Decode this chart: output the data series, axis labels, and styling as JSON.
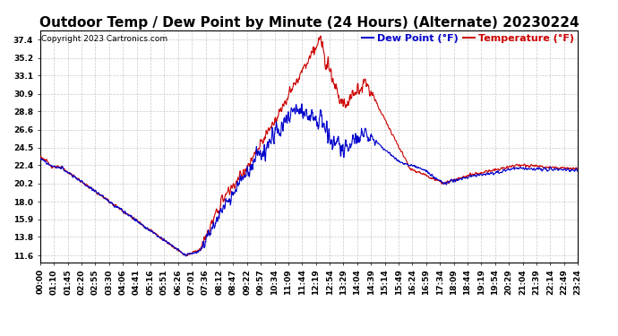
{
  "title": "Outdoor Temp / Dew Point by Minute (24 Hours) (Alternate) 20230224",
  "copyright": "Copyright 2023 Cartronics.com",
  "legend_dew": "Dew Point (°F)",
  "legend_temp": "Temperature (°F)",
  "yticks": [
    11.6,
    13.8,
    15.9,
    18.0,
    20.2,
    22.4,
    24.5,
    26.6,
    28.8,
    30.9,
    33.1,
    35.2,
    37.4
  ],
  "ylim": [
    10.8,
    38.5
  ],
  "xtick_labels": [
    "00:00",
    "01:10",
    "01:45",
    "02:20",
    "02:55",
    "03:30",
    "04:06",
    "04:41",
    "05:16",
    "05:51",
    "06:26",
    "07:01",
    "07:36",
    "08:12",
    "08:47",
    "09:22",
    "09:57",
    "10:34",
    "11:09",
    "11:44",
    "12:19",
    "12:54",
    "13:29",
    "14:04",
    "14:39",
    "15:14",
    "15:49",
    "16:24",
    "16:59",
    "17:34",
    "18:09",
    "18:44",
    "19:19",
    "19:54",
    "20:29",
    "21:04",
    "21:39",
    "22:14",
    "22:49",
    "23:24"
  ],
  "temp_color": "#cc0000",
  "dew_color": "#0000cc",
  "grid_color": "#bbbbbb",
  "bg_color": "#ffffff",
  "title_fontsize": 11,
  "copyright_fontsize": 6.5,
  "legend_fontsize": 8,
  "tick_fontsize": 6.5
}
